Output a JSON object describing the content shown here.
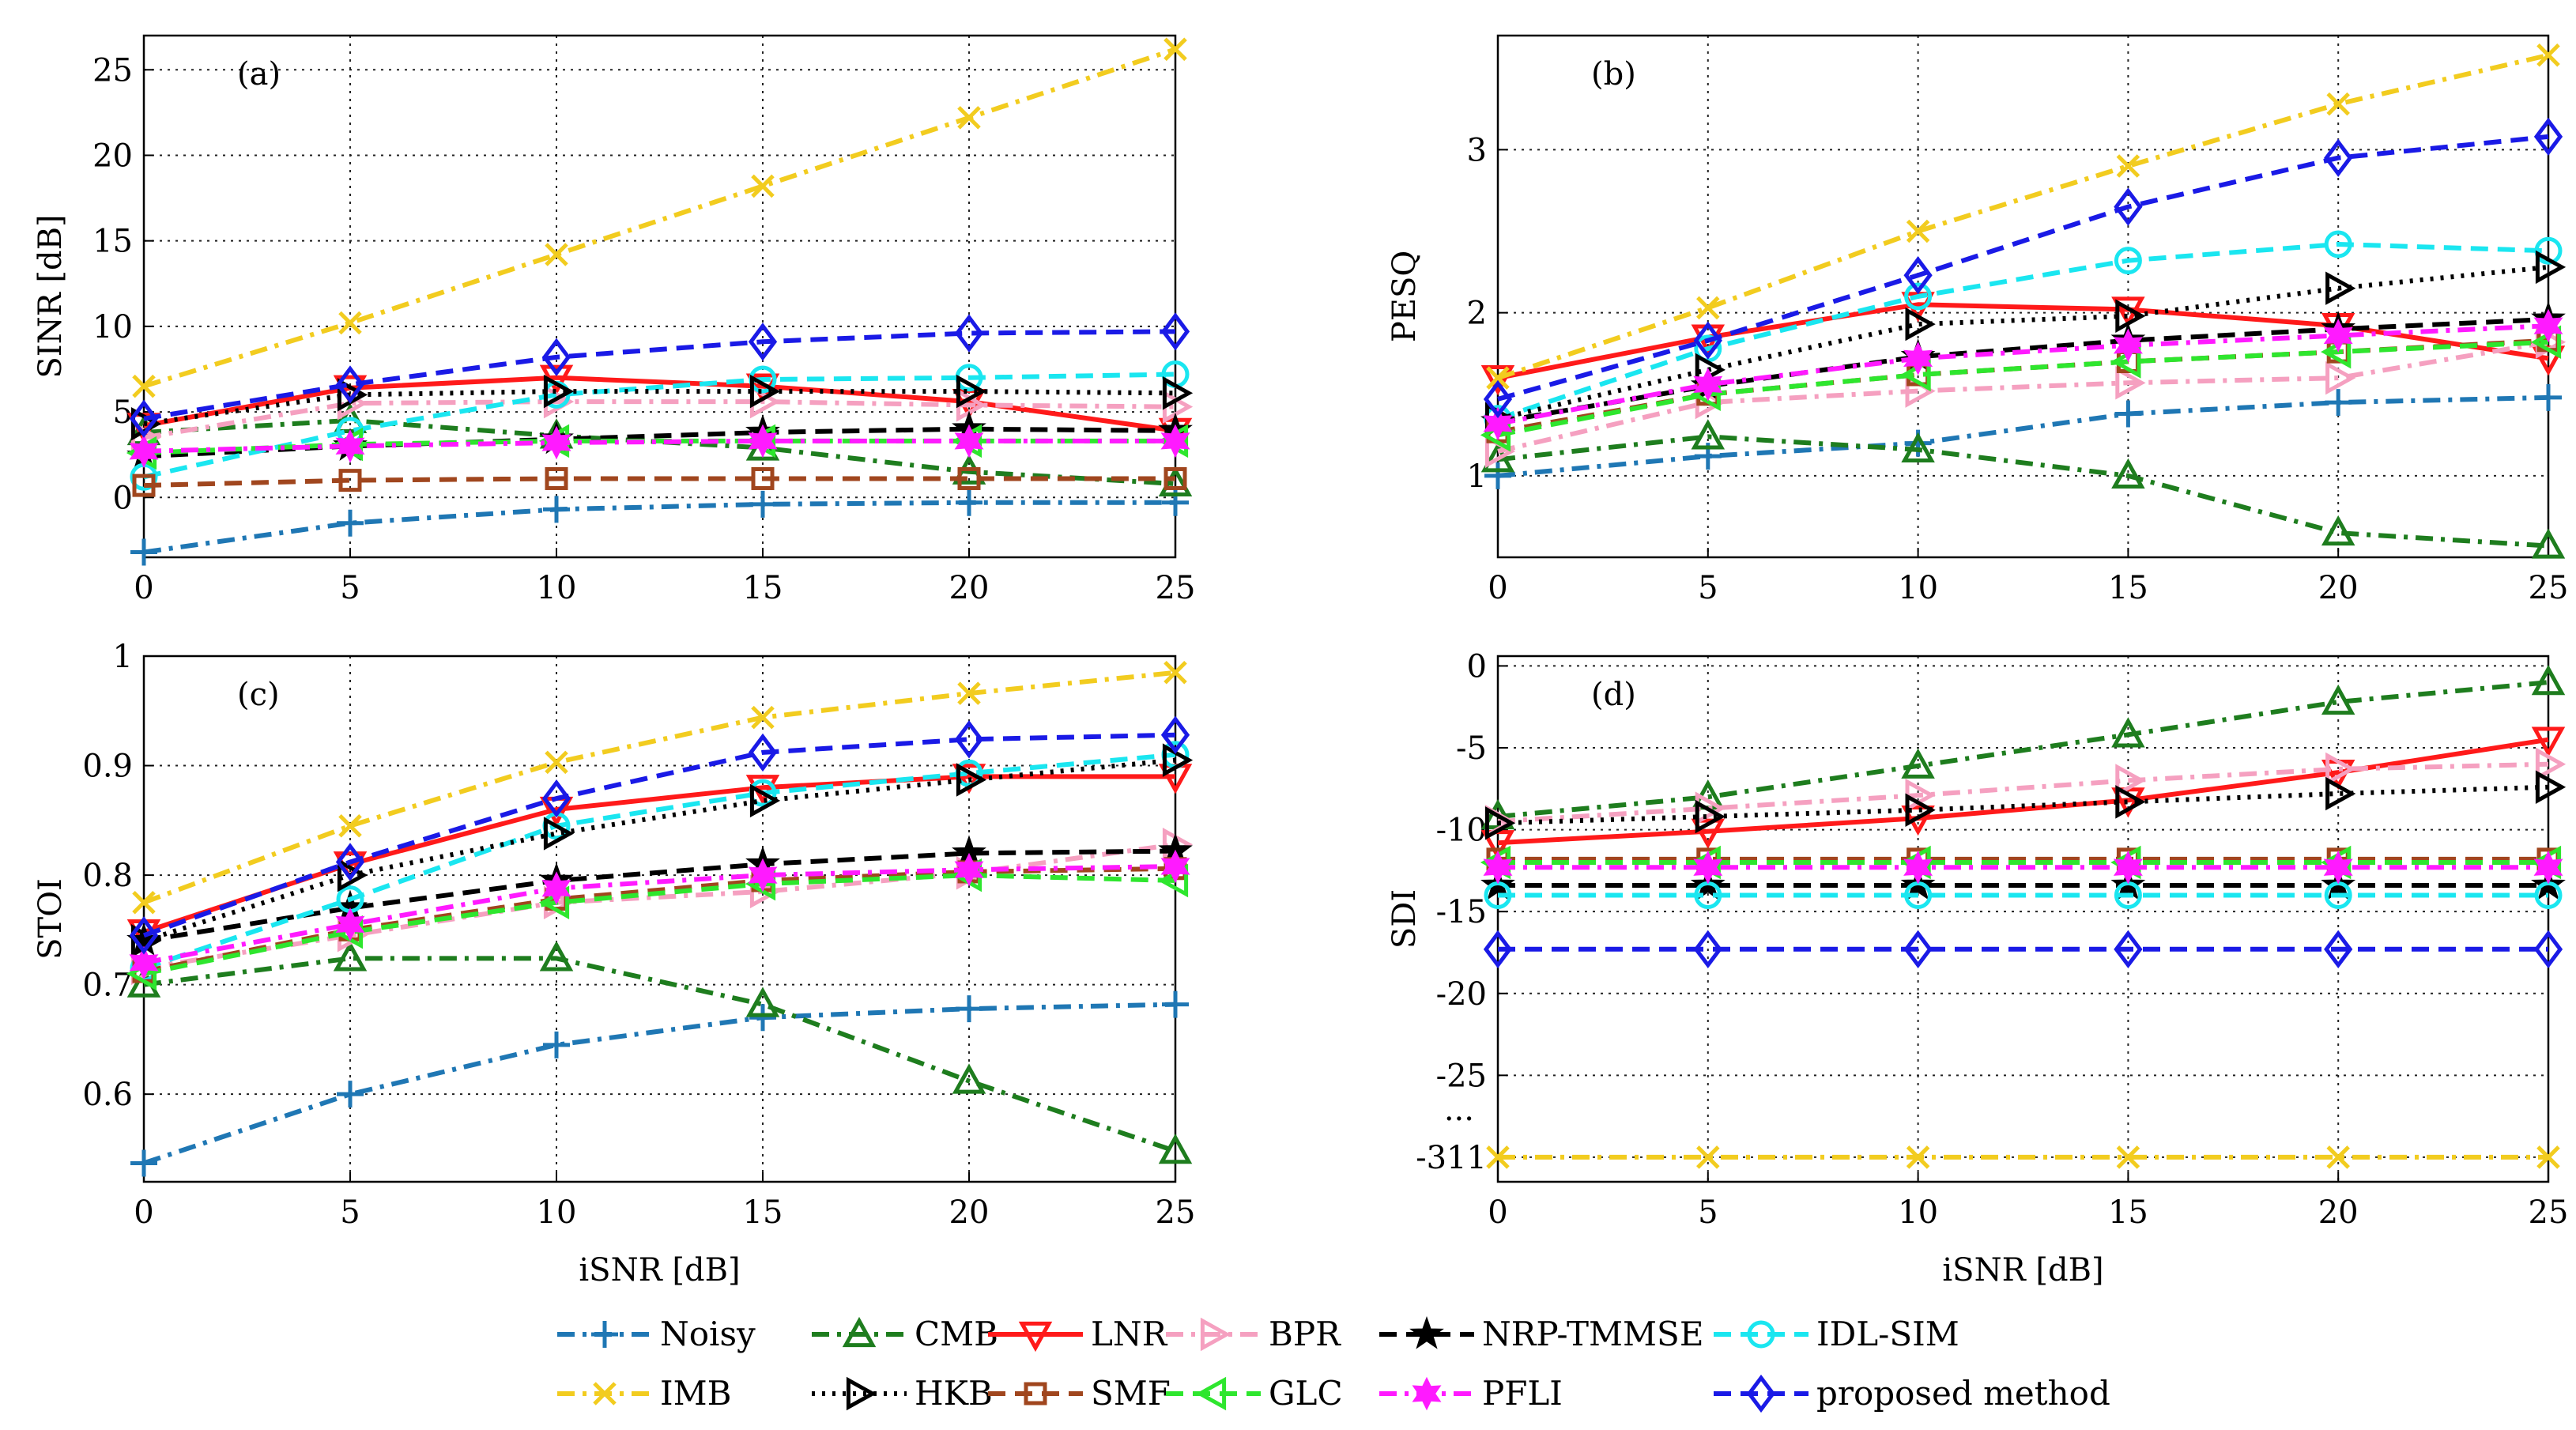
{
  "chart_data": {
    "type": "line",
    "series_styles": [
      {
        "name": "Noisy",
        "color": "#1f77b4",
        "dash": "dashdot",
        "marker": "plus"
      },
      {
        "name": "CMB",
        "color": "#1e7d1e",
        "dash": "dashdot",
        "marker": "triangle-up"
      },
      {
        "name": "LNR",
        "color": "#ff1a1a",
        "dash": "solid",
        "marker": "triangle-down"
      },
      {
        "name": "BPR",
        "color": "#f5a0c0",
        "dash": "dashdot",
        "marker": "triangle-right"
      },
      {
        "name": "NRP-TMMSE",
        "color": "#000000",
        "dash": "dashed",
        "marker": "star"
      },
      {
        "name": "IDL-SIM",
        "color": "#1ae6f0",
        "dash": "dashed",
        "marker": "circle"
      },
      {
        "name": "IMB",
        "color": "#f2cc1f",
        "dash": "dashdot",
        "marker": "x"
      },
      {
        "name": "HKB",
        "color": "#000000",
        "dash": "dotted",
        "marker": "triangle-right"
      },
      {
        "name": "SMF",
        "color": "#a0461e",
        "dash": "dashed",
        "marker": "square"
      },
      {
        "name": "GLC",
        "color": "#2ee62e",
        "dash": "dashed",
        "marker": "triangle-left"
      },
      {
        "name": "PFLI",
        "color": "#ff1aff",
        "dash": "dashdot",
        "marker": "hexagram"
      },
      {
        "name": "proposed method",
        "color": "#1a1ae6",
        "dash": "dashed",
        "marker": "diamond"
      }
    ],
    "panels": [
      {
        "id": "a",
        "label": "(a)",
        "xlabel": "",
        "ylabel": "SINR [dB]",
        "x": [
          0,
          5,
          10,
          15,
          20,
          25
        ],
        "xlim": [
          0,
          25
        ],
        "ylim": [
          -3.5,
          27
        ],
        "yticks": [
          "0",
          "5",
          "10",
          "15",
          "20",
          "25"
        ],
        "ytick_values": [
          0,
          5,
          10,
          15,
          20,
          25
        ],
        "xticks": [
          "0",
          "5",
          "10",
          "15",
          "20",
          "25"
        ],
        "series": [
          {
            "name": "Noisy",
            "values": [
              -3.2,
              -1.5,
              -0.7,
              -0.4,
              -0.3,
              -0.3
            ]
          },
          {
            "name": "CMB",
            "values": [
              3.8,
              4.5,
              3.6,
              2.9,
              1.5,
              0.8
            ]
          },
          {
            "name": "LNR",
            "values": [
              4.2,
              6.4,
              7.0,
              6.5,
              5.6,
              3.9
            ]
          },
          {
            "name": "BPR",
            "values": [
              3.5,
              5.5,
              5.6,
              5.6,
              5.4,
              5.3
            ]
          },
          {
            "name": "NRP-TMMSE",
            "values": [
              2.4,
              3.0,
              3.4,
              3.8,
              4.0,
              3.9
            ]
          },
          {
            "name": "IDL-SIM",
            "values": [
              1.2,
              3.9,
              6.0,
              6.9,
              7.0,
              7.2
            ]
          },
          {
            "name": "IMB",
            "values": [
              6.5,
              10.2,
              14.2,
              18.2,
              22.2,
              26.2
            ]
          },
          {
            "name": "HKB",
            "values": [
              4.3,
              6.0,
              6.2,
              6.2,
              6.2,
              6.1
            ]
          },
          {
            "name": "SMF",
            "values": [
              0.7,
              1.0,
              1.1,
              1.1,
              1.1,
              1.1
            ]
          },
          {
            "name": "GLC",
            "values": [
              2.6,
              3.1,
              3.3,
              3.3,
              3.3,
              3.3
            ]
          },
          {
            "name": "PFLI",
            "values": [
              2.7,
              3.0,
              3.2,
              3.3,
              3.3,
              3.3
            ]
          },
          {
            "name": "proposed method",
            "values": [
              4.6,
              6.6,
              8.2,
              9.1,
              9.6,
              9.7
            ]
          }
        ]
      },
      {
        "id": "b",
        "label": "(b)",
        "xlabel": "",
        "ylabel": "PESQ",
        "x": [
          0,
          5,
          10,
          15,
          20,
          25
        ],
        "xlim": [
          0,
          25
        ],
        "ylim": [
          0.5,
          3.7
        ],
        "yticks": [
          "1",
          "2",
          "3"
        ],
        "ytick_values": [
          1,
          2,
          3
        ],
        "xticks": [
          "0",
          "5",
          "10",
          "15",
          "20",
          "25"
        ],
        "series": [
          {
            "name": "Noisy",
            "values": [
              1.0,
              1.12,
              1.2,
              1.38,
              1.45,
              1.48
            ]
          },
          {
            "name": "CMB",
            "values": [
              1.1,
              1.24,
              1.16,
              1.0,
              0.65,
              0.57
            ]
          },
          {
            "name": "LNR",
            "values": [
              1.6,
              1.85,
              2.05,
              2.02,
              1.92,
              1.72
            ]
          },
          {
            "name": "BPR",
            "values": [
              1.15,
              1.45,
              1.52,
              1.57,
              1.6,
              1.82
            ]
          },
          {
            "name": "NRP-TMMSE",
            "values": [
              1.33,
              1.55,
              1.73,
              1.83,
              1.9,
              1.96
            ]
          },
          {
            "name": "IDL-SIM",
            "values": [
              1.35,
              1.78,
              2.1,
              2.32,
              2.42,
              2.38
            ]
          },
          {
            "name": "IMB",
            "values": [
              1.6,
              2.03,
              2.5,
              2.9,
              3.28,
              3.58
            ]
          },
          {
            "name": "HKB",
            "values": [
              1.35,
              1.65,
              1.93,
              1.98,
              2.15,
              2.28
            ]
          },
          {
            "name": "SMF",
            "values": [
              1.27,
              1.5,
              1.62,
              1.7,
              1.76,
              1.83
            ]
          },
          {
            "name": "GLC",
            "values": [
              1.25,
              1.5,
              1.62,
              1.7,
              1.76,
              1.82
            ]
          },
          {
            "name": "PFLI",
            "values": [
              1.32,
              1.56,
              1.72,
              1.8,
              1.86,
              1.92
            ]
          },
          {
            "name": "proposed method",
            "values": [
              1.47,
              1.83,
              2.23,
              2.65,
              2.95,
              3.08
            ]
          }
        ]
      },
      {
        "id": "c",
        "label": "(c)",
        "xlabel": "iSNR [dB]",
        "ylabel": "STOI",
        "x": [
          0,
          5,
          10,
          15,
          20,
          25
        ],
        "xlim": [
          0,
          25
        ],
        "ylim": [
          0.52,
          1.0
        ],
        "yticks": [
          "0.6",
          "0.7",
          "0.8",
          "0.9",
          "1"
        ],
        "ytick_values": [
          0.6,
          0.7,
          0.8,
          0.9,
          1.0
        ],
        "xticks": [
          "0",
          "5",
          "10",
          "15",
          "20",
          "25"
        ],
        "series": [
          {
            "name": "Noisy",
            "values": [
              0.537,
              0.6,
              0.645,
              0.67,
              0.678,
              0.682
            ]
          },
          {
            "name": "CMB",
            "values": [
              0.7,
              0.724,
              0.724,
              0.682,
              0.612,
              0.548
            ]
          },
          {
            "name": "LNR",
            "values": [
              0.748,
              0.81,
              0.86,
              0.88,
              0.89,
              0.89
            ]
          },
          {
            "name": "BPR",
            "values": [
              0.715,
              0.745,
              0.775,
              0.785,
              0.802,
              0.828
            ]
          },
          {
            "name": "NRP-TMMSE",
            "values": [
              0.74,
              0.77,
              0.795,
              0.81,
              0.82,
              0.822
            ]
          },
          {
            "name": "IDL-SIM",
            "values": [
              0.715,
              0.778,
              0.845,
              0.875,
              0.893,
              0.91
            ]
          },
          {
            "name": "IMB",
            "values": [
              0.775,
              0.845,
              0.903,
              0.944,
              0.966,
              0.985
            ]
          },
          {
            "name": "HKB",
            "values": [
              0.74,
              0.8,
              0.838,
              0.868,
              0.887,
              0.905
            ]
          },
          {
            "name": "SMF",
            "values": [
              0.712,
              0.75,
              0.778,
              0.795,
              0.803,
              0.806
            ]
          },
          {
            "name": "GLC",
            "values": [
              0.71,
              0.748,
              0.775,
              0.792,
              0.8,
              0.795
            ]
          },
          {
            "name": "PFLI",
            "values": [
              0.72,
              0.755,
              0.788,
              0.8,
              0.805,
              0.808
            ]
          },
          {
            "name": "proposed method",
            "values": [
              0.745,
              0.812,
              0.87,
              0.912,
              0.924,
              0.928
            ]
          }
        ]
      },
      {
        "id": "d",
        "label": "(d)",
        "xlabel": "iSNR [dB]",
        "ylabel": "SDI",
        "x": [
          0,
          5,
          10,
          15,
          20,
          25
        ],
        "xlim": [
          0,
          25
        ],
        "ylim": [
          -31.5,
          0.6
        ],
        "axis_break": "...",
        "yticks": [
          "0",
          "-5",
          "-10",
          "-15",
          "-20",
          "-25",
          "-311"
        ],
        "ytick_values": [
          0,
          -5,
          -10,
          -15,
          -20,
          -25,
          -30
        ],
        "xticks": [
          "0",
          "5",
          "10",
          "15",
          "20",
          "25"
        ],
        "series": [
          {
            "name": "CMB",
            "values": [
              -9.2,
              -8.0,
              -6.1,
              -4.2,
              -2.2,
              -1.0
            ]
          },
          {
            "name": "LNR",
            "values": [
              -10.8,
              -10.1,
              -9.3,
              -8.2,
              -6.5,
              -4.5
            ]
          },
          {
            "name": "BPR",
            "values": [
              -9.5,
              -8.7,
              -7.9,
              -7.0,
              -6.3,
              -6.0
            ]
          },
          {
            "name": "NRP-TMMSE",
            "values": [
              -13.4,
              -13.4,
              -13.4,
              -13.4,
              -13.4,
              -13.4
            ]
          },
          {
            "name": "IDL-SIM",
            "values": [
              -14.0,
              -14.0,
              -14.0,
              -14.0,
              -14.0,
              -14.0
            ]
          },
          {
            "name": "IMB",
            "values": [
              -30.0,
              -30.0,
              -30.0,
              -30.0,
              -30.0,
              -30.0
            ]
          },
          {
            "name": "HKB",
            "values": [
              -9.6,
              -9.2,
              -8.8,
              -8.3,
              -7.8,
              -7.4
            ]
          },
          {
            "name": "SMF",
            "values": [
              -11.8,
              -11.8,
              -11.8,
              -11.8,
              -11.8,
              -11.8
            ]
          },
          {
            "name": "GLC",
            "values": [
              -12.0,
              -12.0,
              -12.0,
              -12.0,
              -12.0,
              -12.0
            ]
          },
          {
            "name": "PFLI",
            "values": [
              -12.3,
              -12.3,
              -12.3,
              -12.3,
              -12.3,
              -12.3
            ]
          },
          {
            "name": "proposed method",
            "values": [
              -17.3,
              -17.3,
              -17.3,
              -17.3,
              -17.3,
              -17.3
            ]
          }
        ]
      }
    ],
    "legend": {
      "placement": "bottom",
      "rows": [
        [
          "Noisy",
          "CMB",
          "LNR",
          "BPR",
          "NRP-TMMSE",
          "IDL-SIM"
        ],
        [
          "IMB",
          "HKB",
          "SMF",
          "GLC",
          "PFLI",
          "proposed method"
        ]
      ]
    }
  }
}
